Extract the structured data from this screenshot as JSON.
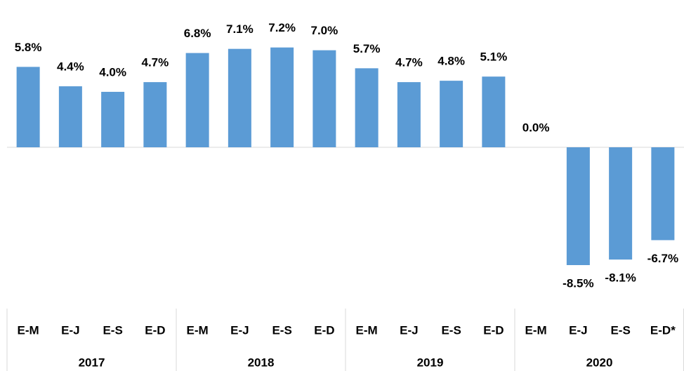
{
  "chart_data": {
    "type": "bar",
    "categories": [
      "E-M",
      "E-J",
      "E-S",
      "E-D",
      "E-M",
      "E-J",
      "E-S",
      "E-D",
      "E-M",
      "E-J",
      "E-S",
      "E-D",
      "E-M",
      "E-J",
      "E-S",
      "E-D*"
    ],
    "groups": [
      "2017",
      "2018",
      "2019",
      "2020"
    ],
    "values": [
      5.8,
      4.4,
      4.0,
      4.7,
      6.8,
      7.1,
      7.2,
      7.0,
      5.7,
      4.7,
      4.8,
      5.1,
      0.0,
      -8.5,
      -8.1,
      -6.7
    ],
    "value_labels": [
      "5.8%",
      "4.4%",
      "4.0%",
      "4.7%",
      "6.8%",
      "7.1%",
      "7.2%",
      "7.0%",
      "5.7%",
      "4.7%",
      "4.8%",
      "5.1%",
      "0.0%",
      "-8.5%",
      "-8.1%",
      "-6.7%"
    ],
    "color": "#5b9bd5"
  }
}
